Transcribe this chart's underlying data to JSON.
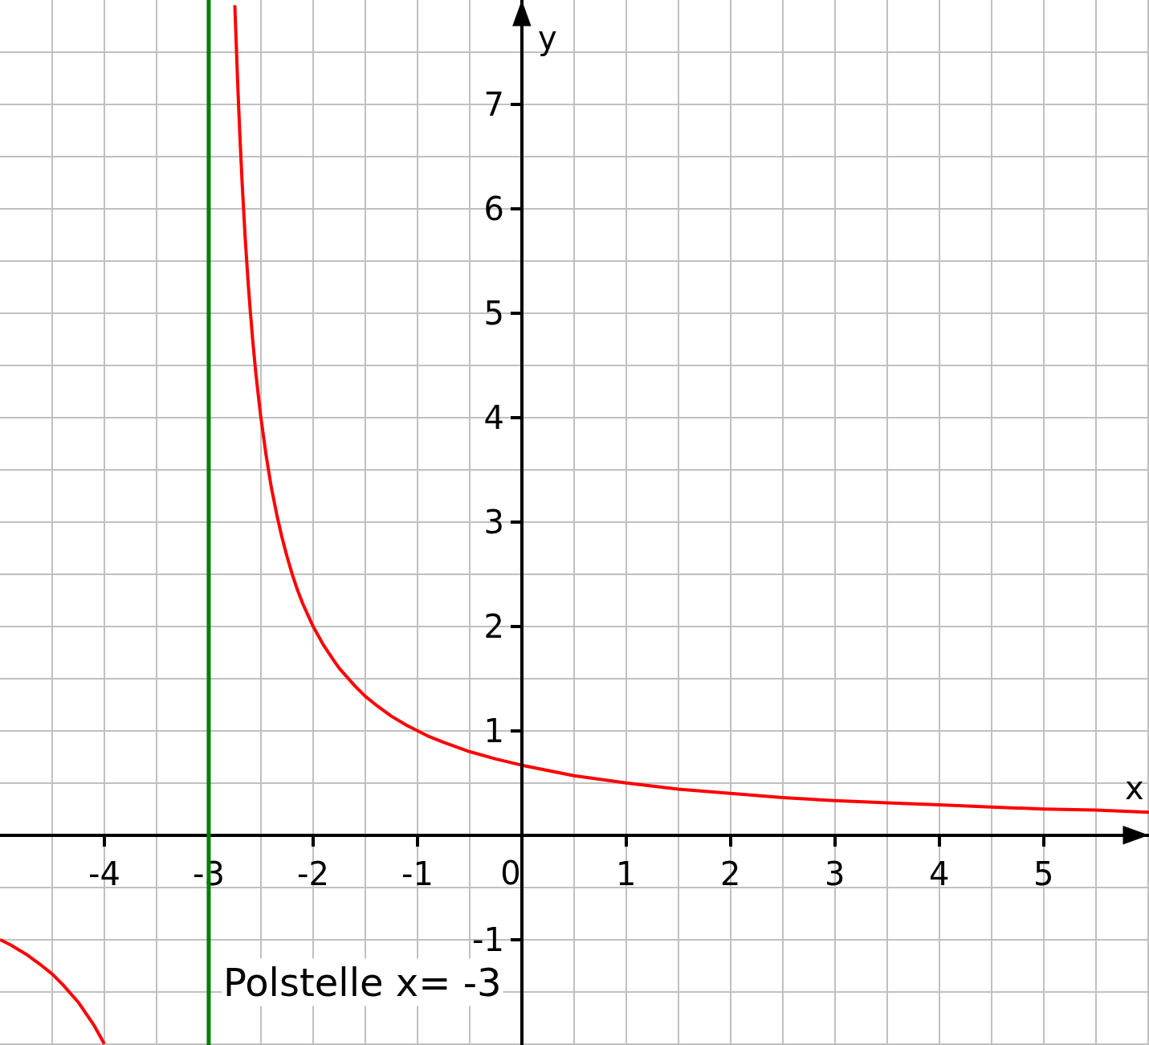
{
  "chart_data": {
    "type": "line",
    "xlabel": "x",
    "ylabel": "y",
    "x": [
      -5,
      -4.9,
      -4.75,
      -4.6,
      -4.5,
      -4.4,
      -4.25,
      -4.1,
      -4,
      -3,
      -2.75,
      -2.72,
      -2.7,
      -2.68,
      -2.65,
      -2.62,
      -2.6,
      -2.58,
      -2.55,
      -2.52,
      -2.5,
      -2.45,
      -2.4,
      -2.35,
      -2.3,
      -2.25,
      -2.2,
      -2.15,
      -2.1,
      -2,
      -1.9,
      -1.8,
      -1.75,
      -1.6,
      -1.5,
      -1.4,
      -1.25,
      -1.1,
      -1,
      -0.9,
      -0.75,
      -0.5,
      -0.25,
      0,
      0.5,
      1,
      1.5,
      2,
      2.5,
      3,
      3.5,
      4,
      4.5,
      5,
      5.5,
      6.01
    ],
    "series": [
      {
        "color": "#ff0000",
        "values": [
          -1,
          -1.05,
          -1.14,
          -1.25,
          -1.33,
          -1.43,
          -1.6,
          -1.82,
          -2,
          null,
          7.95,
          7.14,
          6.67,
          6.25,
          5.71,
          5.26,
          5,
          4.76,
          4.44,
          4.17,
          4,
          3.64,
          3.33,
          3.08,
          2.86,
          2.67,
          2.5,
          2.35,
          2.22,
          2,
          1.82,
          1.67,
          1.6,
          1.43,
          1.33,
          1.25,
          1.14,
          1.05,
          1,
          0.95,
          0.89,
          0.8,
          0.73,
          0.67,
          0.57,
          0.5,
          0.44,
          0.4,
          0.36,
          0.33,
          0.31,
          0.29,
          0.27,
          0.25,
          0.24,
          0.22
        ]
      }
    ],
    "xlim": [
      -5,
      6.01
    ],
    "ylim": [
      -2.01,
      8
    ],
    "xticks": [
      -4,
      -3,
      -2,
      -1,
      0,
      1,
      2,
      3,
      4,
      5
    ],
    "yticks": [
      -1,
      1,
      2,
      3,
      4,
      5,
      6,
      7
    ],
    "grid": true,
    "ref_lines": [
      {
        "axis": "x",
        "value": -3,
        "label": "Polstelle x= -3",
        "color": "#008000"
      }
    ]
  }
}
